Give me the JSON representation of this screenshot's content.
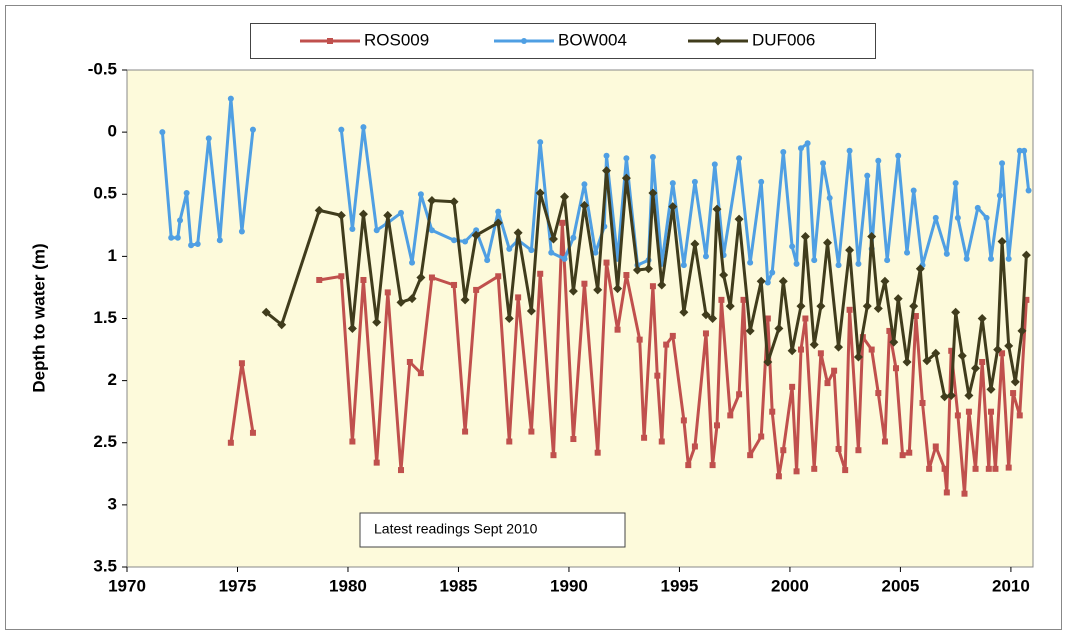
{
  "chart_data": {
    "type": "line",
    "y_label": "Depth to water  (m)",
    "annotation": "Latest readings  Sept 2010",
    "xlim": [
      1970,
      2011
    ],
    "xticks": [
      1970,
      1975,
      1980,
      1985,
      1990,
      1995,
      2000,
      2005,
      2010
    ],
    "ylim": [
      3.5,
      -0.5
    ],
    "yticks": [
      -0.5,
      0,
      0.5,
      1,
      1.5,
      2,
      2.5,
      3,
      3.5
    ],
    "legend": "top",
    "series": [
      {
        "name": "ROS009",
        "color": "#c0504d",
        "marker": "square",
        "x": [
          1974.7,
          1975.2,
          1975.7,
          null,
          1978.7,
          1979.7,
          1980.2,
          1980.7,
          1981.3,
          1981.8,
          1982.4,
          1982.8,
          1983.3,
          1983.8,
          1984.8,
          1985.3,
          1985.8,
          1986.8,
          1987.3,
          1987.7,
          1988.3,
          1988.7,
          1989.3,
          1989.7,
          1990.2,
          1990.7,
          1991.3,
          1991.7,
          1992.2,
          1992.6,
          1993.2,
          1993.4,
          1993.8,
          1994.0,
          1994.2,
          1994.4,
          1994.7,
          1995.2,
          1995.4,
          1995.7,
          1996.2,
          1996.5,
          1996.7,
          1996.9,
          1997.3,
          1997.7,
          1997.9,
          1998.2,
          1998.7,
          1999.0,
          1999.2,
          1999.5,
          1999.7,
          2000.1,
          2000.3,
          2000.5,
          2000.7,
          2001.1,
          2001.4,
          2001.7,
          2002.0,
          2002.2,
          2002.5,
          2002.7,
          2003.1,
          2003.3,
          2003.7,
          2004.0,
          2004.3,
          2004.5,
          2004.8,
          2005.1,
          2005.4,
          2005.7,
          2006.0,
          2006.3,
          2006.6,
          2007.0,
          2007.1,
          2007.3,
          2007.6,
          2007.9,
          2008.1,
          2008.4,
          2008.7,
          2009.0,
          2009.1,
          2009.3,
          2009.6,
          2009.9,
          2010.1,
          2010.4,
          2010.7
        ],
        "values": [
          2.5,
          1.86,
          2.42,
          null,
          1.19,
          1.16,
          2.49,
          1.19,
          2.66,
          1.29,
          2.72,
          1.85,
          1.94,
          1.17,
          1.23,
          2.41,
          1.27,
          1.16,
          2.49,
          1.33,
          2.41,
          1.14,
          2.6,
          0.73,
          2.47,
          1.22,
          2.58,
          1.05,
          1.59,
          1.15,
          1.67,
          2.46,
          1.24,
          1.96,
          2.49,
          1.71,
          1.64,
          2.32,
          2.68,
          2.53,
          1.62,
          2.68,
          2.36,
          1.35,
          2.28,
          2.11,
          1.35,
          2.6,
          2.45,
          1.5,
          2.25,
          2.77,
          2.56,
          2.05,
          2.73,
          1.75,
          1.5,
          2.71,
          1.78,
          2.02,
          1.92,
          2.55,
          2.72,
          1.43,
          2.56,
          1.65,
          1.75,
          2.1,
          2.49,
          1.6,
          1.9,
          2.6,
          2.58,
          1.48,
          2.18,
          2.71,
          2.53,
          2.71,
          2.9,
          1.76,
          2.28,
          2.91,
          2.25,
          2.71,
          1.85,
          2.71,
          2.25,
          2.71,
          1.78,
          2.7,
          2.1,
          2.28,
          1.35
        ]
      },
      {
        "name": "BOW004",
        "color": "#4f9fe3",
        "marker": "circle",
        "x": [
          1971.6,
          1972.0,
          1972.3,
          1972.4,
          1972.7,
          1972.9,
          1973.2,
          1973.7,
          1974.2,
          1974.7,
          1975.2,
          1975.7,
          null,
          1979.7,
          1980.2,
          1980.7,
          1981.3,
          1981.8,
          1982.4,
          1982.9,
          1983.3,
          1983.8,
          1984.8,
          1985.3,
          1985.8,
          1986.3,
          1986.8,
          1987.3,
          1987.7,
          1988.3,
          1988.7,
          1989.2,
          1989.8,
          1990.2,
          1990.7,
          1991.2,
          1991.6,
          1991.7,
          1992.2,
          1992.6,
          1993.1,
          1993.6,
          1993.8,
          1994.2,
          1994.7,
          1995.2,
          1995.7,
          1996.2,
          1996.6,
          1997.0,
          1997.7,
          1998.2,
          1998.7,
          1999.0,
          1999.2,
          1999.7,
          2000.1,
          2000.3,
          2000.5,
          2000.8,
          2001.1,
          2001.5,
          2001.8,
          2002.2,
          2002.7,
          2003.1,
          2003.5,
          2003.7,
          2004.0,
          2004.4,
          2004.9,
          2005.3,
          2005.6,
          2006.0,
          2006.6,
          2007.1,
          2007.5,
          2007.6,
          2008.0,
          2008.5,
          2008.9,
          2009.1,
          2009.5,
          2009.6,
          2009.9,
          2010.4,
          2010.6,
          2010.8
        ],
        "values": [
          0.0,
          0.85,
          0.85,
          0.71,
          0.49,
          0.91,
          0.9,
          0.05,
          0.87,
          -0.27,
          0.8,
          -0.02,
          null,
          -0.02,
          0.78,
          -0.04,
          0.79,
          0.73,
          0.65,
          1.05,
          0.5,
          0.79,
          0.87,
          0.88,
          0.79,
          1.03,
          0.64,
          0.94,
          0.87,
          0.95,
          0.08,
          0.97,
          1.02,
          0.85,
          0.42,
          0.97,
          0.76,
          0.19,
          1.02,
          0.21,
          1.07,
          1.03,
          0.2,
          1.06,
          0.41,
          1.07,
          0.4,
          1.0,
          0.26,
          0.99,
          0.21,
          1.05,
          0.4,
          1.21,
          1.13,
          0.16,
          0.92,
          1.06,
          0.13,
          0.09,
          1.03,
          0.25,
          0.53,
          1.07,
          0.15,
          1.06,
          0.35,
          0.94,
          0.23,
          1.03,
          0.19,
          0.97,
          0.47,
          1.07,
          0.69,
          0.98,
          0.41,
          0.69,
          1.02,
          0.61,
          0.69,
          1.02,
          0.51,
          0.25,
          1.02,
          0.15,
          0.15,
          0.47
        ]
      },
      {
        "name": "DUF006",
        "color": "#403c1c",
        "marker": "diamond",
        "x": [
          1976.3,
          1977.0,
          1978.7,
          1979.7,
          1980.2,
          1980.7,
          1981.3,
          1981.8,
          1982.4,
          1982.9,
          1983.3,
          1983.8,
          1984.8,
          1985.3,
          1985.8,
          1986.8,
          1987.3,
          1987.7,
          1988.3,
          1988.7,
          1989.3,
          1989.8,
          1990.2,
          1990.7,
          1991.3,
          1991.7,
          1992.2,
          1992.6,
          1993.1,
          1993.6,
          1993.8,
          1994.2,
          1994.7,
          1995.2,
          1995.7,
          1996.2,
          1996.5,
          1996.7,
          1997.0,
          1997.3,
          1997.7,
          1998.2,
          1998.7,
          1999.0,
          1999.5,
          1999.7,
          2000.1,
          2000.5,
          2000.7,
          2001.1,
          2001.4,
          2001.7,
          2002.2,
          2002.7,
          2003.1,
          2003.5,
          2003.7,
          2004.0,
          2004.3,
          2004.7,
          2004.9,
          2005.3,
          2005.6,
          2005.9,
          2006.2,
          2006.6,
          2007.0,
          2007.3,
          2007.5,
          2007.8,
          2008.1,
          2008.4,
          2008.7,
          2009.1,
          2009.4,
          2009.6,
          2009.9,
          2010.2,
          2010.5,
          2010.7
        ],
        "values": [
          1.45,
          1.55,
          0.63,
          0.67,
          1.58,
          0.66,
          1.53,
          0.67,
          1.37,
          1.34,
          1.17,
          0.55,
          0.56,
          1.35,
          0.83,
          0.73,
          1.5,
          0.81,
          1.44,
          0.49,
          0.86,
          0.52,
          1.28,
          0.59,
          1.27,
          0.31,
          1.26,
          0.37,
          1.11,
          1.1,
          0.49,
          1.23,
          0.6,
          1.45,
          0.9,
          1.47,
          1.5,
          0.62,
          1.15,
          1.4,
          0.7,
          1.6,
          1.2,
          1.85,
          1.58,
          1.2,
          1.76,
          1.4,
          0.84,
          1.71,
          1.4,
          0.89,
          1.73,
          0.95,
          1.81,
          1.4,
          0.84,
          1.42,
          1.2,
          1.69,
          1.34,
          1.85,
          1.4,
          1.1,
          1.84,
          1.78,
          2.13,
          2.12,
          1.45,
          1.8,
          2.12,
          1.9,
          1.5,
          2.07,
          1.75,
          0.88,
          1.72,
          2.01,
          1.6,
          0.99
        ]
      }
    ]
  }
}
